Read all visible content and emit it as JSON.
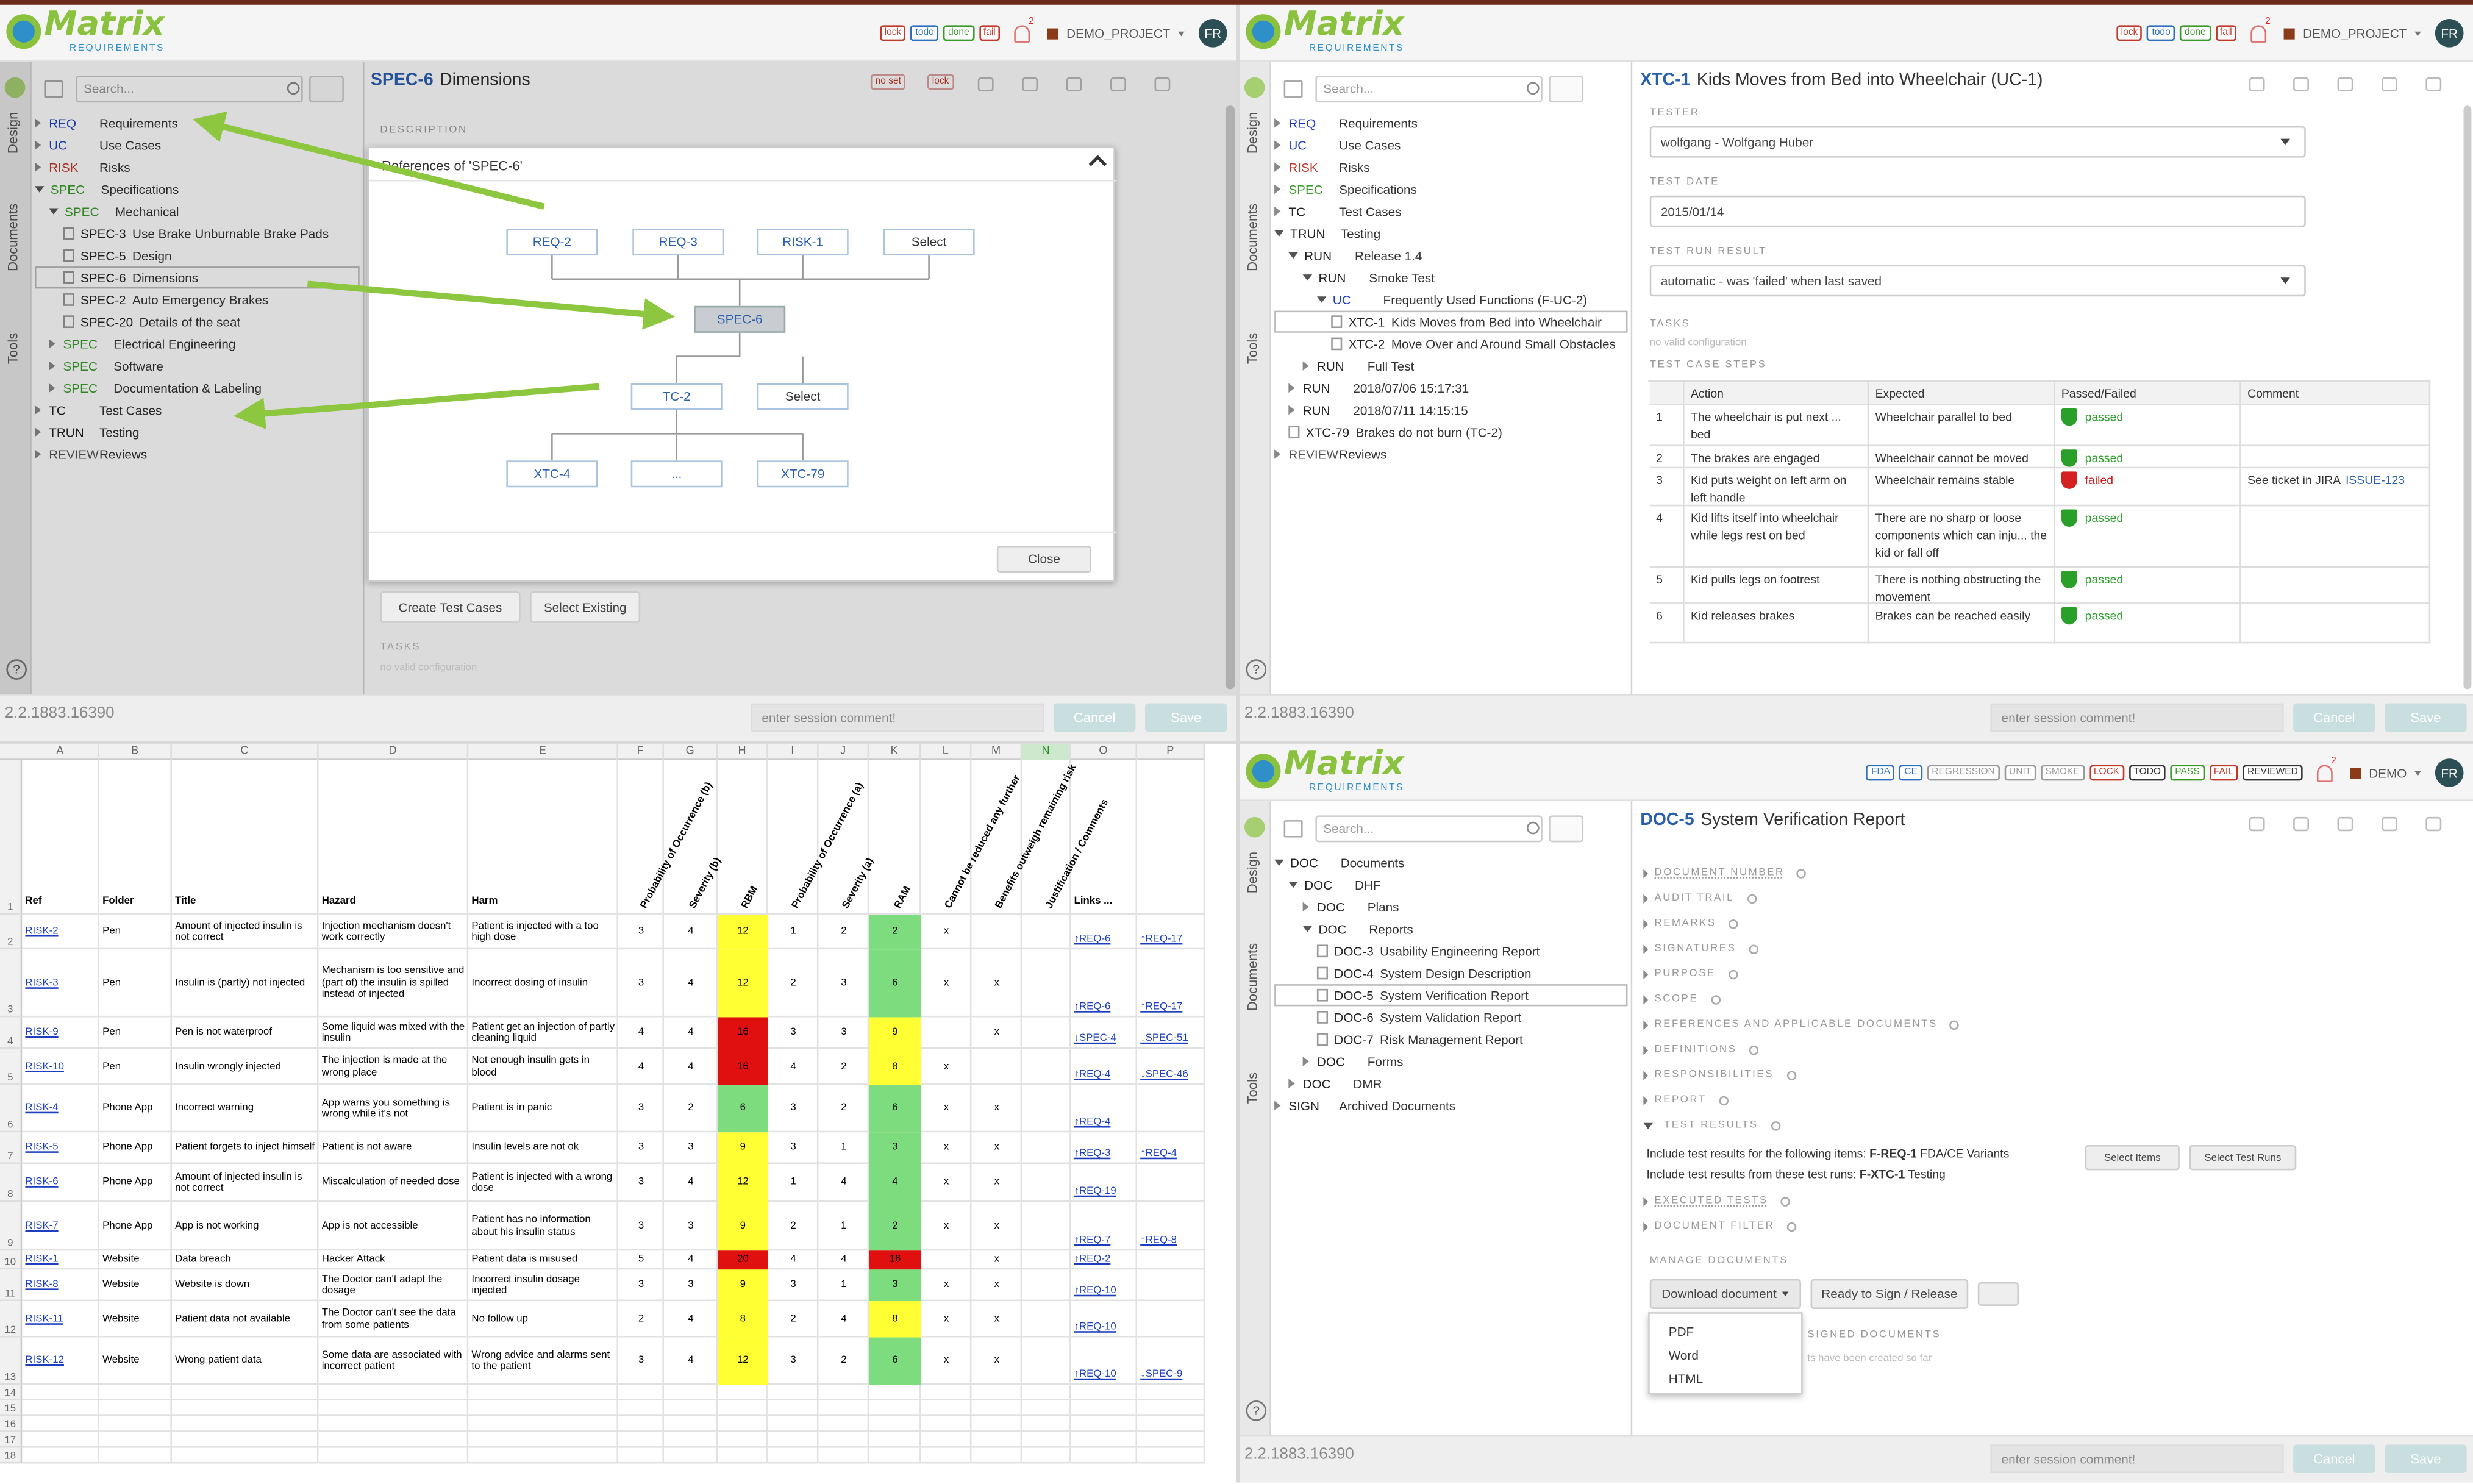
{
  "top_left": {
    "header": {
      "logo": "Matrix",
      "logo_sub": "REQUIREMENTS",
      "tags": [
        "lock",
        "todo",
        "done",
        "fail"
      ],
      "tag_colors": [
        "#c0392b",
        "#2e6fc0",
        "#3a9a2a",
        "#c0392b"
      ],
      "notifications": "2",
      "project": "DEMO_PROJECT",
      "user": "FR"
    },
    "side_tabs": [
      "Design",
      "Documents",
      "Tools"
    ],
    "search": "Search...",
    "code_colors": {
      "REQ": "#1d3fbf",
      "UC": "#1d3fbf",
      "RISK": "#c0392b",
      "SPEC": "#3a9a2a",
      "REVIEW": "#555555"
    },
    "tree": [
      {
        "code": "REQ",
        "label": "Requirements"
      },
      {
        "code": "UC",
        "label": "Use Cases"
      },
      {
        "code": "RISK",
        "label": "Risks"
      },
      {
        "code": "SPEC",
        "label": "Specifications",
        "children": [
          {
            "code": "SPEC",
            "label": "Mechanical",
            "children": [
              {
                "code": "SPEC-3",
                "label": "Use Brake Unburnable Brake Pads"
              },
              {
                "code": "SPEC-5",
                "label": "Design"
              },
              {
                "code": "SPEC-6",
                "label": "Dimensions",
                "selected": true
              },
              {
                "code": "SPEC-2",
                "label": "Auto Emergency Brakes"
              },
              {
                "code": "SPEC-20",
                "label": "Details of the seat"
              }
            ]
          },
          {
            "code": "SPEC",
            "label": "Electrical Engineering"
          },
          {
            "code": "SPEC",
            "label": "Software"
          },
          {
            "code": "SPEC",
            "label": "Documentation & Labeling"
          }
        ]
      },
      {
        "code": "TC",
        "label": "Test Cases"
      },
      {
        "code": "TRUN",
        "label": "Testing"
      },
      {
        "code": "REVIEW",
        "label": "Reviews"
      }
    ],
    "item": {
      "id": "SPEC-6",
      "title": "Dimensions",
      "tags": [
        "no set",
        "lock"
      ]
    },
    "description_label": "DESCRIPTION",
    "dialog": {
      "title": "References of 'SPEC-6'",
      "nodes": [
        "REQ-2",
        "REQ-3",
        "RISK-1",
        "Select",
        "SPEC-6",
        "TC-2",
        "Select",
        "XTC-4",
        "...",
        "XTC-79"
      ],
      "close": "Close"
    },
    "buttons": [
      "Create Test Cases",
      "Select Existing"
    ],
    "tasks_label": "TASKS",
    "tasks_note": "no valid configuration",
    "help": "?",
    "footer": {
      "version": "2.2.1883.16390",
      "comment": "enter session comment!",
      "cancel": "Cancel",
      "save": "Save"
    }
  },
  "top_right": {
    "header": {
      "logo": "Matrix",
      "logo_sub": "REQUIREMENTS",
      "tags": [
        "lock",
        "todo",
        "done",
        "fail"
      ],
      "tag_colors": [
        "#c0392b",
        "#2e6fc0",
        "#3a9a2a",
        "#c0392b"
      ],
      "notifications": "2",
      "project": "DEMO_PROJECT",
      "user": "FR"
    },
    "side_tabs": [
      "Design",
      "Documents",
      "Tools"
    ],
    "search": "Search...",
    "code_colors": {
      "REQ": "#1d3fbf",
      "UC": "#1d3fbf",
      "RISK": "#c0392b",
      "SPEC": "#3a9a2a",
      "REVIEW": "#555555"
    },
    "tree": [
      {
        "code": "REQ",
        "label": "Requirements"
      },
      {
        "code": "UC",
        "label": "Use Cases"
      },
      {
        "code": "RISK",
        "label": "Risks"
      },
      {
        "code": "SPEC",
        "label": "Specifications"
      },
      {
        "code": "TC",
        "label": "Test Cases"
      },
      {
        "code": "TRUN",
        "label": "Testing",
        "children": [
          {
            "code": "RUN",
            "label": "Release 1.4",
            "children": [
              {
                "code": "RUN",
                "label": "Smoke Test",
                "children": [
                  {
                    "code": "UC",
                    "label": "Frequently Used Functions (F-UC-2)",
                    "children": [
                      {
                        "code": "XTC-1",
                        "label": "Kids Moves from Bed into Wheelchair",
                        "selected": true
                      },
                      {
                        "code": "XTC-2",
                        "label": "Move Over and Around Small Obstacles"
                      }
                    ]
                  }
                ]
              },
              {
                "code": "RUN",
                "label": "Full Test"
              }
            ]
          },
          {
            "code": "RUN",
            "label": "2018/07/06 15:17:31"
          },
          {
            "code": "RUN",
            "label": "2018/07/11 14:15:15"
          },
          {
            "code": "XTC-79",
            "label": "Brakes do not burn (TC-2)"
          }
        ]
      },
      {
        "code": "REVIEW",
        "label": "Reviews"
      }
    ],
    "item": {
      "id": "XTC-1",
      "title": "Kids Moves from Bed into Wheelchair (UC-1)"
    },
    "fields": [
      {
        "label": "TESTER",
        "value": "wolfgang - Wolfgang Huber",
        "dropdown": true
      },
      {
        "label": "TEST DATE",
        "value": "2015/01/14",
        "dropdown": false
      },
      {
        "label": "TEST RUN RESULT",
        "value": "automatic - was 'failed' when last saved",
        "dropdown": true
      }
    ],
    "tasks_label": "TASKS",
    "tasks_note": "no valid configuration",
    "steps": {
      "label": "TEST CASE STEPS",
      "columns": [
        "Action",
        "Expected",
        "Passed/Failed",
        "Comment"
      ],
      "rows": [
        {
          "n": 1,
          "action": "The wheelchair is put next ... bed",
          "expected": "Wheelchair parallel to bed",
          "result": "passed",
          "color": "#2aa02a"
        },
        {
          "n": 2,
          "action": "The brakes are engaged",
          "expected": "Wheelchair cannot be moved",
          "result": "passed",
          "color": "#2aa02a"
        },
        {
          "n": 3,
          "action": "Kid puts weight on left arm on left handle",
          "expected": "Wheelchair remains stable",
          "result": "failed",
          "color": "#d42020",
          "comment": "See ticket in JIRA",
          "link": "ISSUE-123"
        },
        {
          "n": 4,
          "action": "Kid lifts itself into wheelchair while legs rest on bed",
          "expected": "There are no sharp or loose components which can inju... the kid or fall off",
          "result": "passed",
          "color": "#2aa02a"
        },
        {
          "n": 5,
          "action": "Kid pulls legs on footrest",
          "expected": "There is nothing obstructing the movement",
          "result": "passed",
          "color": "#2aa02a"
        },
        {
          "n": 6,
          "action": "Kid releases brakes",
          "expected": "Brakes can be reached easily",
          "result": "passed",
          "color": "#2aa02a"
        }
      ]
    },
    "help": "?",
    "footer": {
      "version": "2.2.1883.16390",
      "comment": "enter session comment!",
      "cancel": "Cancel",
      "save": "Save"
    }
  },
  "bottom_left": {
    "columns": [
      "A",
      "B",
      "C",
      "D",
      "E",
      "F",
      "G",
      "H",
      "I",
      "J",
      "K",
      "L",
      "M",
      "N",
      "O",
      "P"
    ],
    "row_numbers": [
      1,
      2,
      3,
      4,
      5,
      6,
      7,
      8,
      9,
      10,
      11,
      12,
      13,
      14,
      15,
      16,
      17,
      18
    ],
    "headers": [
      "Ref",
      "Folder",
      "Title",
      "Hazard",
      "Harm",
      "Probability of Occurrence (b)",
      "Severity (b)",
      "RBM",
      "Probability of Occurrence (a)",
      "Severity (a)",
      "RAM",
      "Cannot be reduced any further",
      "Benefits outweigh remaining risk",
      "Justification / Comments",
      "Links ..."
    ],
    "risk_colors": {
      "green": "#7ddc7d",
      "yellow": "#ffff33",
      "red": "#e01010"
    },
    "rows": [
      {
        "cells": [
          "RISK-2",
          "Pen",
          "Amount of injected insulin is not correct",
          "Injection mechanism doesn't work correctly",
          "Patient is injected with a too high dose",
          3,
          4,
          12,
          1,
          2,
          2,
          "x",
          null,
          null
        ],
        "links": [
          "↑REQ-6",
          "↑REQ-17"
        ],
        "rbm_color": "yellow",
        "ram_color": "green"
      },
      {
        "cells": [
          "RISK-3",
          "Pen",
          "Insulin is (partly) not injected",
          "Mechanism is too sensitive and (part of) the insulin is spilled instead of injected",
          "Incorrect dosing of insulin",
          3,
          4,
          12,
          2,
          3,
          6,
          "x",
          "x",
          null
        ],
        "links": [
          "↑REQ-6",
          "↑REQ-17"
        ],
        "rbm_color": "yellow",
        "ram_color": "green"
      },
      {
        "cells": [
          "RISK-9",
          "Pen",
          "Pen is not waterproof",
          "Some liquid was mixed with the insulin",
          "Patient get an injection of partly cleaning liquid",
          4,
          4,
          16,
          3,
          3,
          9,
          null,
          "x",
          null
        ],
        "links": [
          "↓SPEC-4",
          "↓SPEC-51"
        ],
        "rbm_color": "red",
        "ram_color": "yellow"
      },
      {
        "cells": [
          "RISK-10",
          "Pen",
          "Insulin wrongly injected",
          "The injection is made at the wrong place",
          "Not enough insulin gets in blood",
          4,
          4,
          16,
          4,
          2,
          8,
          "x",
          null,
          null
        ],
        "links": [
          "↑REQ-4",
          "↓SPEC-46"
        ],
        "rbm_color": "red",
        "ram_color": "yellow"
      },
      {
        "cells": [
          "RISK-4",
          "Phone App",
          "Incorrect warning",
          "App warns you something is wrong while it's not",
          "Patient is in panic",
          3,
          2,
          6,
          3,
          2,
          6,
          "x",
          "x",
          null
        ],
        "links": [
          "↑REQ-4"
        ],
        "rbm_color": "green",
        "ram_color": "green"
      },
      {
        "cells": [
          "RISK-5",
          "Phone App",
          "Patient forgets to inject himself",
          "Patient is not aware",
          "Insulin levels are not ok",
          3,
          3,
          9,
          3,
          1,
          3,
          "x",
          "x",
          null
        ],
        "links": [
          "↑REQ-3",
          "↑REQ-4"
        ],
        "rbm_color": "yellow",
        "ram_color": "green"
      },
      {
        "cells": [
          "RISK-6",
          "Phone App",
          "Amount of injected insulin is not correct",
          "Miscalculation of needed dose",
          "Patient is injected with a wrong dose",
          3,
          4,
          12,
          1,
          4,
          4,
          "x",
          "x",
          null
        ],
        "links": [
          "↑REQ-19"
        ],
        "rbm_color": "yellow",
        "ram_color": "green"
      },
      {
        "cells": [
          "RISK-7",
          "Phone App",
          "App is not working",
          "App is not accessible",
          "Patient has no information about his insulin status",
          3,
          3,
          9,
          2,
          1,
          2,
          "x",
          "x",
          null
        ],
        "links": [
          "↑REQ-7",
          "↑REQ-8"
        ],
        "rbm_color": "yellow",
        "ram_color": "green"
      },
      {
        "cells": [
          "RISK-1",
          "Website",
          "Data breach",
          "Hacker Attack",
          "Patient data is misused",
          5,
          4,
          20,
          4,
          4,
          16,
          null,
          "x",
          null
        ],
        "links": [
          "↑REQ-2"
        ],
        "rbm_color": "red",
        "ram_color": "red"
      },
      {
        "cells": [
          "RISK-8",
          "Website",
          "Website is down",
          "The Doctor can't adapt the dosage",
          "Incorrect insulin dosage injected",
          3,
          3,
          9,
          3,
          1,
          3,
          "x",
          "x",
          null
        ],
        "links": [
          "↑REQ-10"
        ],
        "rbm_color": "yellow",
        "ram_color": "green"
      },
      {
        "cells": [
          "RISK-11",
          "Website",
          "Patient data not available",
          "The Doctor can't see the data from some patients",
          "No follow up",
          2,
          4,
          8,
          2,
          4,
          8,
          "x",
          "x",
          null
        ],
        "links": [
          "↑REQ-10"
        ],
        "rbm_color": "yellow",
        "ram_color": "yellow"
      },
      {
        "cells": [
          "RISK-12",
          "Website",
          "Wrong patient data",
          "Some data are associated with incorrect patient",
          "Wrong advice and alarms sent to the patient",
          3,
          4,
          12,
          3,
          2,
          6,
          "x",
          "x",
          null
        ],
        "links": [
          "↑REQ-10",
          "↓SPEC-9"
        ],
        "rbm_color": "yellow",
        "ram_color": "green"
      }
    ]
  },
  "bottom_right": {
    "header": {
      "logo": "Matrix",
      "logo_sub": "REQUIREMENTS",
      "tags": [
        "FDA",
        "CE",
        "REGRESSION",
        "UNIT",
        "SMOKE",
        "LOCK",
        "TODO",
        "PASS",
        "FAIL",
        "REVIEWED"
      ],
      "tag_colors": [
        "#2e6fc0",
        "#2e6fc0",
        "#999999",
        "#999999",
        "#999999",
        "#c0392b",
        "#333333",
        "#3a9a2a",
        "#c0392b",
        "#333333"
      ],
      "notifications": "2",
      "project": "DEMO",
      "user": "FR"
    },
    "side_tabs": [
      "Design",
      "Documents",
      "Tools"
    ],
    "search": "Search...",
    "code_colors": {},
    "tree": [
      {
        "code": "DOC",
        "label": "Documents",
        "children": [
          {
            "code": "DOC",
            "label": "DHF",
            "children": [
              {
                "code": "DOC",
                "label": "Plans"
              },
              {
                "code": "DOC",
                "label": "Reports",
                "children": [
                  {
                    "code": "DOC-3",
                    "label": "Usability Engineering Report"
                  },
                  {
                    "code": "DOC-4",
                    "label": "System Design Description"
                  },
                  {
                    "code": "DOC-5",
                    "label": "System Verification Report",
                    "selected": true
                  },
                  {
                    "code": "DOC-6",
                    "label": "System Validation Report"
                  },
                  {
                    "code": "DOC-7",
                    "label": "Risk Management Report"
                  }
                ]
              },
              {
                "code": "DOC",
                "label": "Forms"
              }
            ]
          },
          {
            "code": "DOC",
            "label": "DMR"
          }
        ]
      },
      {
        "code": "SIGN",
        "label": "Archived Documents"
      }
    ],
    "item": {
      "id": "DOC-5",
      "title": "System Verification Report"
    },
    "sections": [
      "DOCUMENT NUMBER",
      "AUDIT TRAIL",
      "REMARKS",
      "SIGNATURES",
      "PURPOSE",
      "SCOPE",
      "REFERENCES AND APPLICABLE DOCUMENTS",
      "DEFINITIONS",
      "RESPONSIBILITIES",
      "REPORT"
    ],
    "test_results": {
      "label": "TEST RESULTS",
      "lines": [
        {
          "text": "Include test results for the following items: ",
          "bold": "F-REQ-1",
          "rest": " FDA/CE Variants"
        },
        {
          "text": "Include test results from these test runs: ",
          "bold": "F-XTC-1",
          "rest": " Testing"
        }
      ],
      "buttons": [
        "Select Items",
        "Select Test Runs"
      ]
    },
    "after_sections": [
      "EXECUTED TESTS",
      "DOCUMENT FILTER"
    ],
    "manage": {
      "label": "MANAGE DOCUMENTS",
      "download": "Download document",
      "ready": "Ready to Sign / Release",
      "menu": [
        "PDF",
        "Word",
        "HTML"
      ],
      "signed_label": "SIGNED DOCUMENTS",
      "signed_note": "ts have been created so far"
    },
    "help": "?",
    "footer": {
      "version": "2.2.1883.16390",
      "comment": "enter session comment!",
      "cancel": "Cancel",
      "save": "Save"
    }
  }
}
